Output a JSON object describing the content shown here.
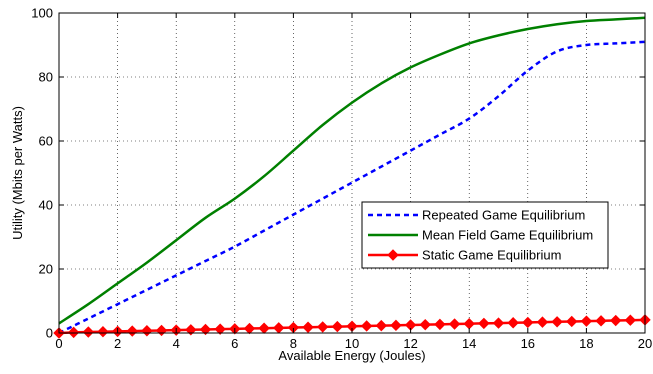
{
  "chart_data": {
    "type": "line",
    "title": "",
    "xlabel": "Available Energy (Joules)",
    "ylabel": "Utility (Mbits per Watts)",
    "xlim": [
      0,
      20
    ],
    "ylim": [
      0,
      100
    ],
    "xticks": [
      0,
      2,
      4,
      6,
      8,
      10,
      12,
      14,
      16,
      18,
      20
    ],
    "yticks": [
      0,
      20,
      40,
      60,
      80,
      100
    ],
    "grid": true,
    "legend_position": "center-right",
    "series": [
      {
        "name": "Repeated Game Equilibrium",
        "color": "#0000ff",
        "style": "dashed",
        "marker": "none",
        "x": [
          0,
          1,
          2,
          3,
          4,
          5,
          6,
          7,
          8,
          9,
          10,
          11,
          12,
          13,
          14,
          15,
          16,
          17,
          18,
          19,
          20
        ],
        "y": [
          0,
          4.5,
          9,
          13.5,
          18,
          22.5,
          27,
          32,
          37,
          42,
          47,
          52,
          57,
          62,
          67,
          74,
          82,
          88,
          90,
          90.5,
          91
        ]
      },
      {
        "name": "Mean Field Game Equilibrium",
        "color": "#008000",
        "style": "solid",
        "marker": "none",
        "x": [
          0,
          1,
          2,
          3,
          4,
          5,
          6,
          7,
          8,
          9,
          10,
          11,
          12,
          13,
          14,
          15,
          16,
          17,
          18,
          19,
          20
        ],
        "y": [
          3,
          9,
          15.5,
          22,
          29,
          36,
          42,
          49,
          57,
          65,
          72,
          78,
          83,
          87,
          90.5,
          93,
          95,
          96.5,
          97.5,
          98,
          98.5
        ]
      },
      {
        "name": "Static Game Equilibrium",
        "color": "#ff0000",
        "style": "solid",
        "marker": "diamond",
        "x": [
          0,
          0.5,
          1,
          1.5,
          2,
          2.5,
          3,
          3.5,
          4,
          4.5,
          5,
          5.5,
          6,
          6.5,
          7,
          7.5,
          8,
          8.5,
          9,
          9.5,
          10,
          10.5,
          11,
          11.5,
          12,
          12.5,
          13,
          13.5,
          14,
          14.5,
          15,
          15.5,
          16,
          16.5,
          17,
          17.5,
          18,
          18.5,
          19,
          19.5,
          20
        ],
        "y": [
          0,
          0.2,
          0.3,
          0.4,
          0.5,
          0.6,
          0.7,
          0.8,
          0.9,
          1.0,
          1.1,
          1.2,
          1.3,
          1.4,
          1.5,
          1.6,
          1.7,
          1.8,
          1.9,
          2.0,
          2.1,
          2.2,
          2.3,
          2.4,
          2.5,
          2.6,
          2.7,
          2.8,
          2.9,
          3.0,
          3.1,
          3.2,
          3.3,
          3.4,
          3.5,
          3.6,
          3.7,
          3.8,
          3.9,
          4.0,
          4.1
        ]
      }
    ]
  }
}
